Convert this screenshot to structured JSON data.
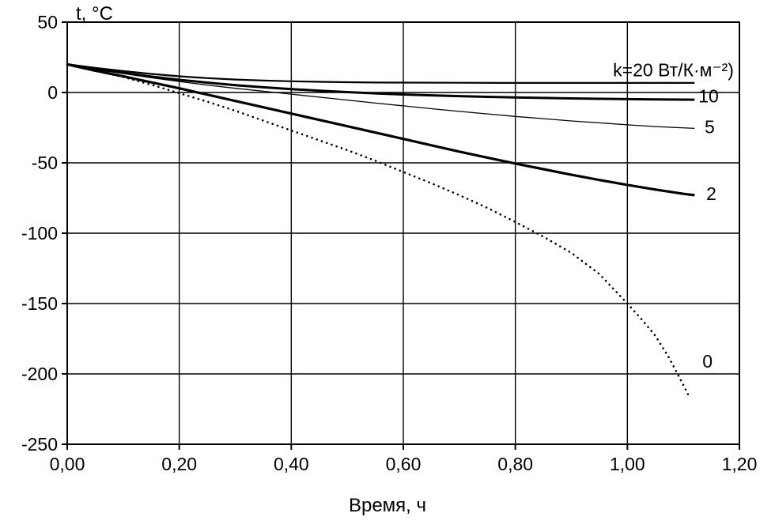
{
  "page": {
    "background": "#ffffff",
    "line_color": "#000000"
  },
  "chart_data": {
    "type": "line",
    "title": "",
    "xlabel": "Время, ч",
    "ylabel": "t, °C",
    "xlim": [
      0,
      1.2
    ],
    "ylim": [
      -250,
      50
    ],
    "grid": true,
    "legend_position": "right-inline",
    "axis_color": "#000000",
    "x_ticks": [
      0,
      0.2,
      0.4,
      0.6,
      0.8,
      1.0,
      1.2
    ],
    "x_tick_labels": [
      "0,00",
      "0,20",
      "0,40",
      "0,60",
      "0,80",
      "1,00",
      "1,20"
    ],
    "y_ticks": [
      50,
      0,
      -50,
      -100,
      -150,
      -200,
      -250
    ],
    "y_tick_labels": [
      "50",
      "0",
      "-50",
      "-100",
      "-150",
      "-200",
      "-250"
    ],
    "series": [
      {
        "id": "k20",
        "name": "k=20",
        "label": "k=20 Вт/К·м⁻²)",
        "label_pos": [
          1.19,
          16
        ],
        "label_anchor": "end",
        "line_style": "solid",
        "line_width": 2.2,
        "color": "#000000",
        "points": [
          [
            0,
            20
          ],
          [
            0.05,
            17.5
          ],
          [
            0.1,
            15.2
          ],
          [
            0.15,
            13.2
          ],
          [
            0.2,
            11.5
          ],
          [
            0.25,
            10.2
          ],
          [
            0.3,
            9.2
          ],
          [
            0.35,
            8.5
          ],
          [
            0.4,
            8
          ],
          [
            0.45,
            7.6
          ],
          [
            0.5,
            7.3
          ],
          [
            0.55,
            7.1
          ],
          [
            0.6,
            7
          ],
          [
            0.7,
            6.9
          ],
          [
            0.8,
            6.8
          ],
          [
            0.9,
            6.8
          ],
          [
            1.0,
            6.8
          ],
          [
            1.12,
            6.8
          ]
        ]
      },
      {
        "id": "k10",
        "name": "k=10",
        "label": "10",
        "label_pos": [
          1.145,
          -2.5
        ],
        "label_anchor": "middle",
        "line_style": "solid",
        "line_width": 3,
        "color": "#000000",
        "points": [
          [
            0,
            20
          ],
          [
            0.05,
            16.8
          ],
          [
            0.1,
            14
          ],
          [
            0.15,
            11.3
          ],
          [
            0.2,
            9
          ],
          [
            0.25,
            7
          ],
          [
            0.3,
            5.2
          ],
          [
            0.35,
            3.7
          ],
          [
            0.4,
            2.4
          ],
          [
            0.45,
            1.3
          ],
          [
            0.5,
            0.3
          ],
          [
            0.55,
            -0.6
          ],
          [
            0.6,
            -1.4
          ],
          [
            0.65,
            -2
          ],
          [
            0.7,
            -2.6
          ],
          [
            0.75,
            -3.1
          ],
          [
            0.8,
            -3.5
          ],
          [
            0.85,
            -3.9
          ],
          [
            0.9,
            -4.2
          ],
          [
            0.95,
            -4.5
          ],
          [
            1.0,
            -4.7
          ],
          [
            1.05,
            -4.9
          ],
          [
            1.12,
            -5.1
          ]
        ]
      },
      {
        "id": "k5",
        "name": "k=5",
        "label": "5",
        "label_pos": [
          1.147,
          -24.5
        ],
        "label_anchor": "middle",
        "line_style": "solid",
        "line_width": 1.3,
        "color": "#000000",
        "points": [
          [
            0,
            20
          ],
          [
            0.05,
            16.5
          ],
          [
            0.1,
            13.5
          ],
          [
            0.15,
            10.5
          ],
          [
            0.2,
            7.8
          ],
          [
            0.25,
            5.3
          ],
          [
            0.3,
            3
          ],
          [
            0.35,
            0.9
          ],
          [
            0.4,
            -1.2
          ],
          [
            0.45,
            -3.3
          ],
          [
            0.5,
            -5.4
          ],
          [
            0.55,
            -7.5
          ],
          [
            0.6,
            -9.5
          ],
          [
            0.65,
            -11.5
          ],
          [
            0.7,
            -13.4
          ],
          [
            0.75,
            -15.2
          ],
          [
            0.8,
            -17
          ],
          [
            0.85,
            -18.6
          ],
          [
            0.9,
            -20.2
          ],
          [
            0.95,
            -21.6
          ],
          [
            1.0,
            -23
          ],
          [
            1.05,
            -24.2
          ],
          [
            1.12,
            -25.5
          ]
        ]
      },
      {
        "id": "k2",
        "name": "k=2",
        "label": "2",
        "label_pos": [
          1.15,
          -72
        ],
        "label_anchor": "middle",
        "line_style": "solid",
        "line_width": 3.2,
        "color": "#000000",
        "points": [
          [
            0,
            20
          ],
          [
            0.05,
            15.5
          ],
          [
            0.1,
            11.5
          ],
          [
            0.15,
            7.2
          ],
          [
            0.2,
            3
          ],
          [
            0.25,
            -1.5
          ],
          [
            0.3,
            -6
          ],
          [
            0.35,
            -10.5
          ],
          [
            0.4,
            -15
          ],
          [
            0.45,
            -19.5
          ],
          [
            0.5,
            -24
          ],
          [
            0.55,
            -28.5
          ],
          [
            0.6,
            -33
          ],
          [
            0.65,
            -37.5
          ],
          [
            0.7,
            -42
          ],
          [
            0.75,
            -46.3
          ],
          [
            0.8,
            -50.5
          ],
          [
            0.85,
            -54.5
          ],
          [
            0.9,
            -58.5
          ],
          [
            0.95,
            -62.2
          ],
          [
            1.0,
            -65.7
          ],
          [
            1.05,
            -69
          ],
          [
            1.1,
            -72
          ],
          [
            1.12,
            -73
          ]
        ]
      },
      {
        "id": "k0",
        "name": "k=0",
        "label": "0",
        "label_pos": [
          1.143,
          -191
        ],
        "label_anchor": "middle",
        "line_style": "dotted",
        "line_width": 2.6,
        "color": "#000000",
        "points": [
          [
            0,
            20
          ],
          [
            0.05,
            15.5
          ],
          [
            0.1,
            11
          ],
          [
            0.15,
            5.5
          ],
          [
            0.2,
            -0.5
          ],
          [
            0.25,
            -6.5
          ],
          [
            0.3,
            -13
          ],
          [
            0.35,
            -20
          ],
          [
            0.4,
            -27
          ],
          [
            0.45,
            -34
          ],
          [
            0.5,
            -41
          ],
          [
            0.55,
            -48.5
          ],
          [
            0.6,
            -56.5
          ],
          [
            0.65,
            -64.5
          ],
          [
            0.7,
            -73
          ],
          [
            0.75,
            -82
          ],
          [
            0.8,
            -92
          ],
          [
            0.85,
            -102.5
          ],
          [
            0.9,
            -114
          ],
          [
            0.95,
            -129
          ],
          [
            1.0,
            -150
          ],
          [
            1.025,
            -161
          ],
          [
            1.05,
            -173
          ],
          [
            1.075,
            -189
          ],
          [
            1.1,
            -208
          ],
          [
            1.11,
            -216
          ]
        ]
      }
    ]
  }
}
